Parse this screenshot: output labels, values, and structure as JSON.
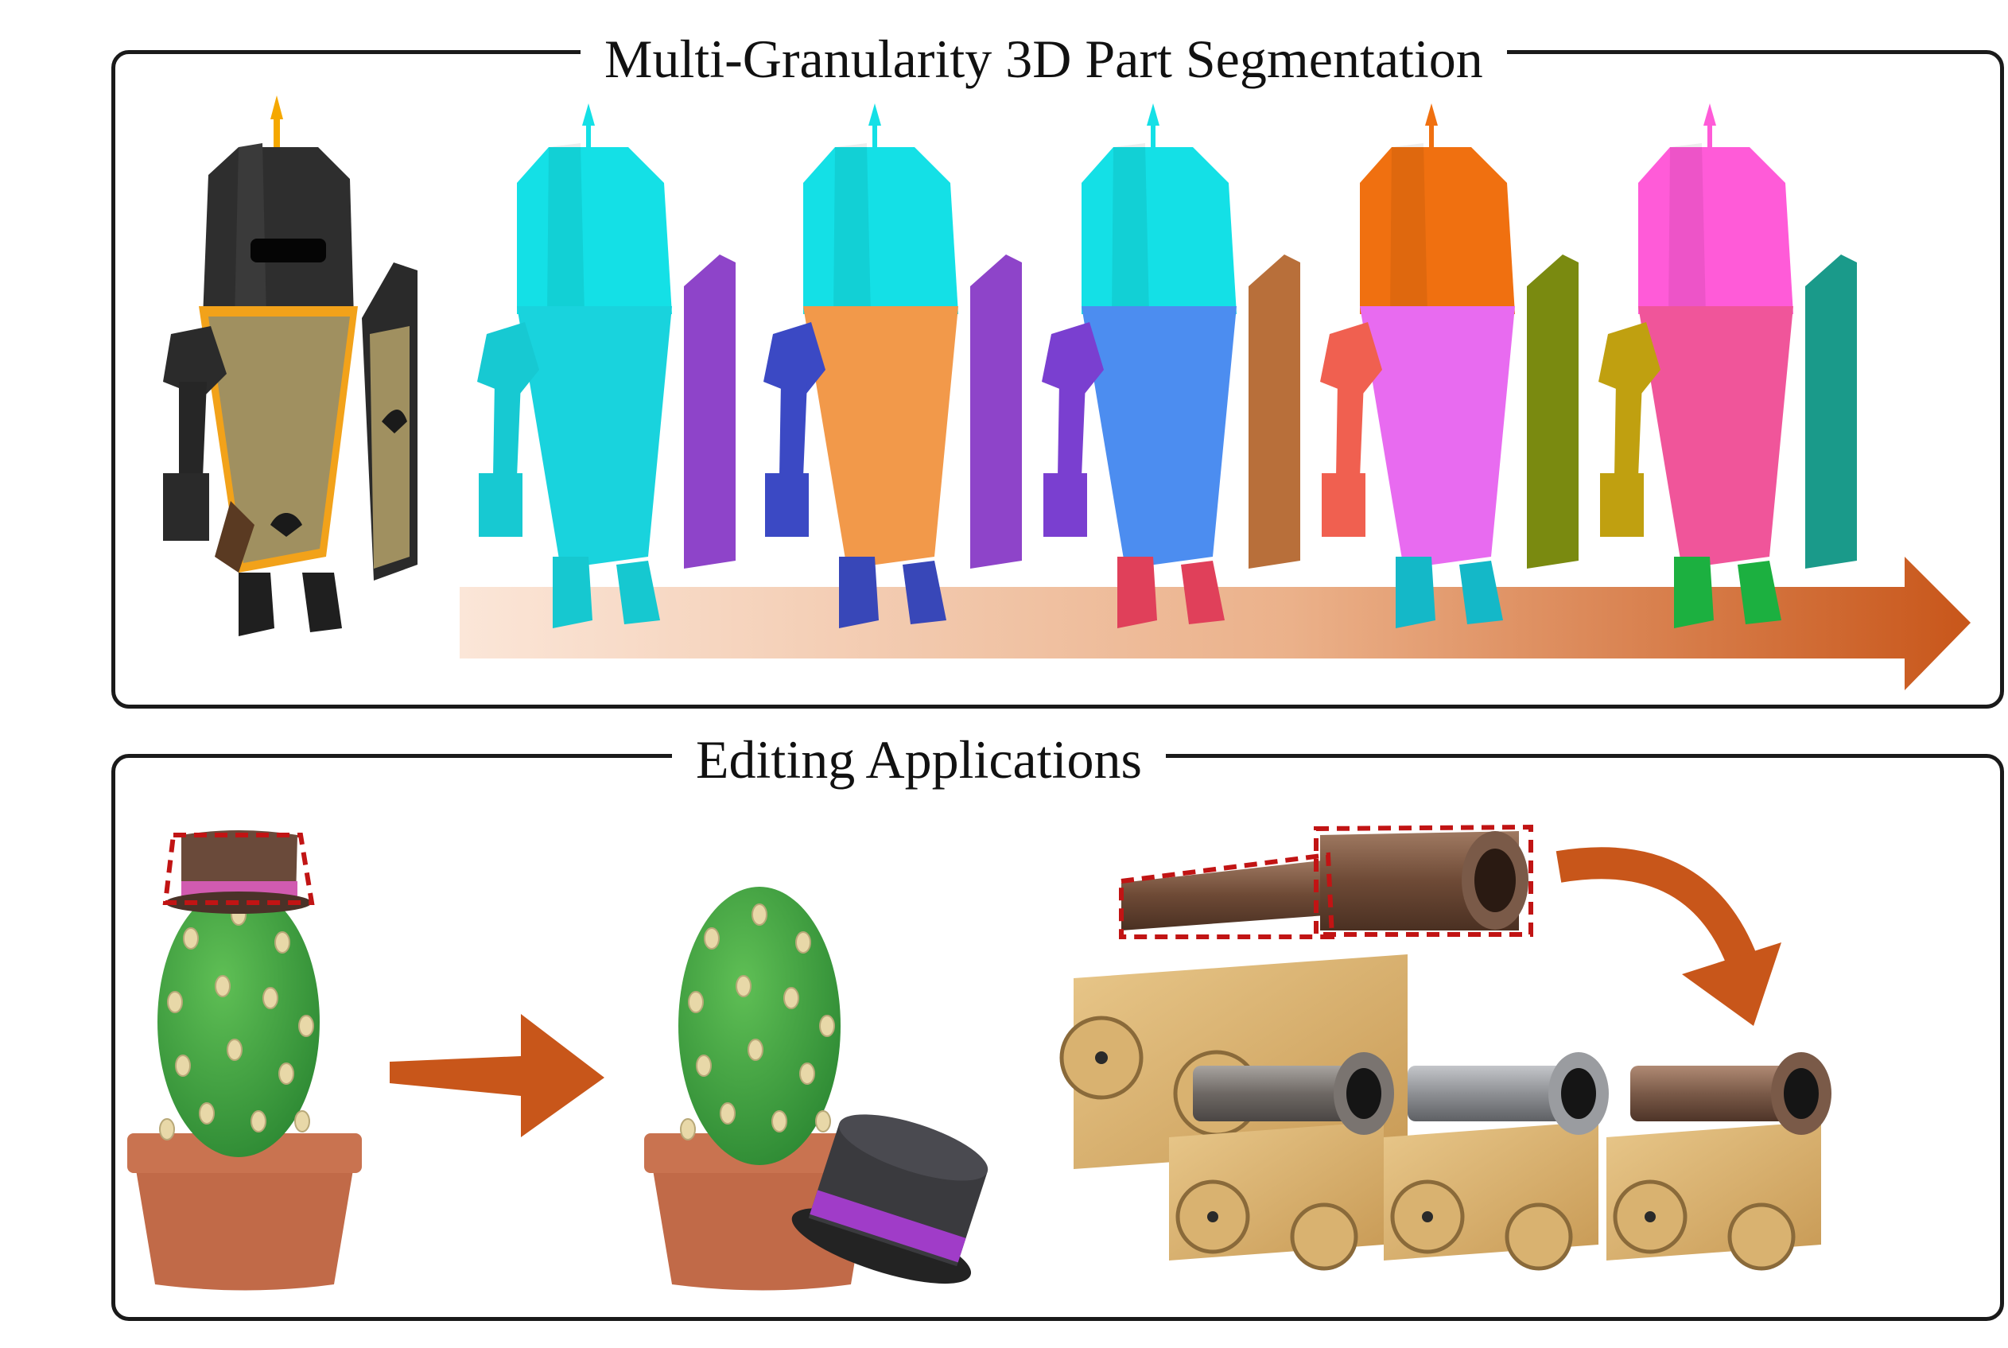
{
  "panels": {
    "segmentation": {
      "title": "Multi-Granularity 3D Part Segmentation"
    },
    "editing": {
      "title": "Editing Applications"
    }
  },
  "figures": {
    "knight_original": {
      "icon": "knight-model-icon"
    },
    "knight_segmentations": [
      {
        "icon": "knight-segmentation-level-1-icon",
        "colors": {
          "helmet": "#14E0E6",
          "body": "#19D3DD",
          "shield": "#8E44C9",
          "arm": "#17C9D2",
          "boots": "#16C8D0"
        }
      },
      {
        "icon": "knight-segmentation-level-2-icon",
        "colors": {
          "helmet": "#14E0E6",
          "body": "#F2994A",
          "shield": "#8E44C9",
          "arm": "#3B49C4",
          "boots": "#3847B8"
        }
      },
      {
        "icon": "knight-segmentation-level-3-icon",
        "colors": {
          "helmet": "#14E0E6",
          "body": "#4C8DF0",
          "shield": "#B86F3A",
          "arm": "#7A3FD0",
          "boots": "#E0405A"
        }
      },
      {
        "icon": "knight-segmentation-level-4-icon",
        "colors": {
          "helmet": "#F07010",
          "body": "#E86BF0",
          "shield": "#7A8A10",
          "arm": "#F06050",
          "boots": "#14B8C8"
        }
      },
      {
        "icon": "knight-segmentation-level-5-icon",
        "colors": {
          "helmet": "#FF5BD8",
          "body": "#F0559A",
          "shield": "#1A9A8A",
          "arm": "#C0A010",
          "boots": "#1CB040"
        }
      }
    ],
    "granularity_arrow": {
      "icon": "granularity-gradient-arrow-icon",
      "color_start": "#FBE6D8",
      "color_end": "#C8561A"
    },
    "cactus_before": {
      "icon": "cactus-with-hat-icon"
    },
    "cactus_after": {
      "icon": "cactus-hat-removed-icon"
    },
    "edit_arrow": {
      "icon": "edit-arrow-icon",
      "color": "#C8561A"
    },
    "cannon_original": {
      "icon": "cannon-selected-barrel-icon"
    },
    "cannon_variants": [
      {
        "icon": "cannon-variant-iron-icon",
        "barrel_color": "#7A7470"
      },
      {
        "icon": "cannon-variant-steel-icon",
        "barrel_color": "#9A9CA0"
      },
      {
        "icon": "cannon-variant-bronze-icon",
        "barrel_color": "#7A5A48"
      }
    ],
    "curved_arrow": {
      "icon": "curved-arrow-icon",
      "color": "#C8561A"
    }
  }
}
